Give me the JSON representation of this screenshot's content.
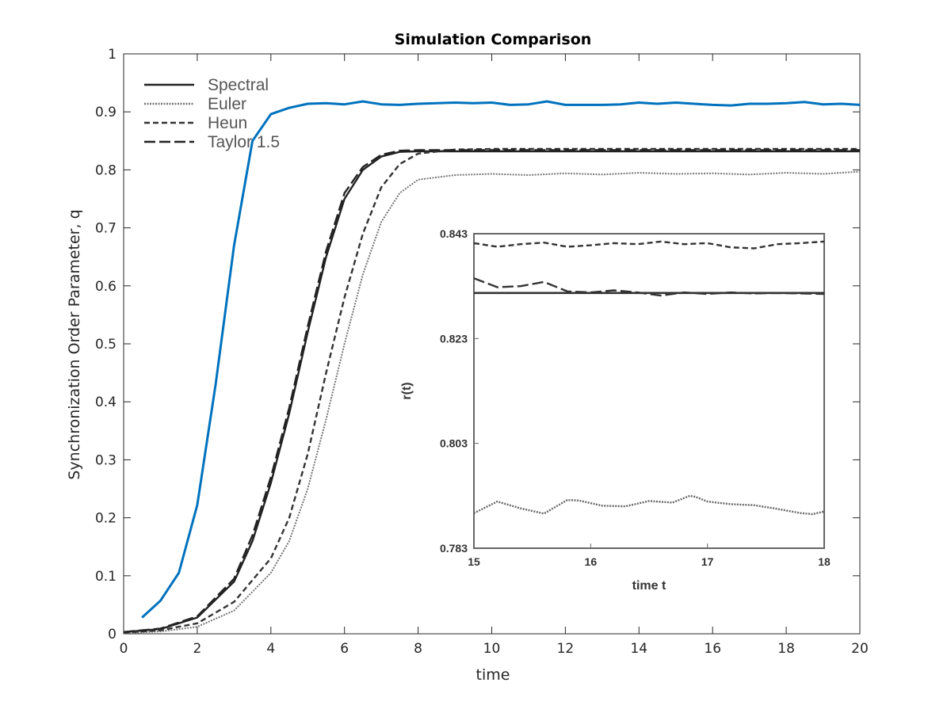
{
  "chart_data": {
    "type": "line",
    "title": "Simulation Comparison",
    "xlabel": "time",
    "ylabel": "Synchronization Order Parameter, q",
    "xlim": [
      0,
      20
    ],
    "ylim": [
      0,
      1
    ],
    "xticks": [
      "0",
      "2",
      "4",
      "6",
      "8",
      "10",
      "12",
      "14",
      "16",
      "18",
      "20"
    ],
    "yticks": [
      "0",
      "0.1",
      "0.2",
      "0.3",
      "0.4",
      "0.5",
      "0.6",
      "0.7",
      "0.8",
      "0.9",
      "1"
    ],
    "grid": false,
    "legend_position": "top-left",
    "series": [
      {
        "name": "",
        "color": "#0072BD",
        "style": "solid",
        "x": [
          0.5,
          1,
          1.5,
          2,
          2.5,
          3,
          3.5,
          4,
          4.5,
          5,
          5.5,
          6,
          6.5,
          7,
          7.5,
          8,
          8.5,
          9,
          9.5,
          10,
          10.5,
          11,
          11.5,
          12,
          12.5,
          13,
          13.5,
          14,
          14.5,
          15,
          15.5,
          16,
          16.5,
          17,
          17.5,
          18,
          18.5,
          19,
          19.5,
          20
        ],
        "y": [
          0.028,
          0.057,
          0.105,
          0.222,
          0.43,
          0.67,
          0.85,
          0.896,
          0.907,
          0.914,
          0.915,
          0.913,
          0.918,
          0.913,
          0.912,
          0.914,
          0.915,
          0.916,
          0.915,
          0.916,
          0.912,
          0.913,
          0.918,
          0.912,
          0.912,
          0.912,
          0.913,
          0.916,
          0.914,
          0.916,
          0.914,
          0.912,
          0.911,
          0.914,
          0.914,
          0.915,
          0.917,
          0.913,
          0.914,
          0.912
        ]
      },
      {
        "name": "Spectral",
        "color": "#222222",
        "style": "solid",
        "x": [
          0,
          1,
          2,
          3,
          3.5,
          4,
          4.5,
          5,
          5.5,
          6,
          6.5,
          7,
          7.5,
          8,
          10,
          12,
          14,
          16,
          18,
          20
        ],
        "y": [
          0.003,
          0.008,
          0.028,
          0.09,
          0.16,
          0.26,
          0.38,
          0.52,
          0.65,
          0.75,
          0.8,
          0.823,
          0.831,
          0.832,
          0.832,
          0.832,
          0.832,
          0.832,
          0.832,
          0.832
        ]
      },
      {
        "name": "Euler",
        "color": "#777777",
        "style": "dotted",
        "x": [
          0,
          1,
          2,
          3,
          4,
          4.5,
          5,
          5.5,
          6,
          6.5,
          7,
          7.5,
          8,
          9,
          10,
          11,
          12,
          13,
          14,
          15,
          16,
          17,
          18,
          19,
          20
        ],
        "y": [
          0.001,
          0.004,
          0.012,
          0.04,
          0.105,
          0.16,
          0.25,
          0.37,
          0.5,
          0.62,
          0.71,
          0.76,
          0.783,
          0.791,
          0.793,
          0.791,
          0.794,
          0.792,
          0.795,
          0.793,
          0.794,
          0.792,
          0.795,
          0.793,
          0.797
        ]
      },
      {
        "name": "Heun",
        "color": "#333333",
        "style": "dashed",
        "x": [
          0,
          1,
          2,
          3,
          4,
          4.5,
          5,
          5.5,
          6,
          6.5,
          7,
          7.5,
          8,
          9,
          10,
          12,
          14,
          16,
          18,
          20
        ],
        "y": [
          0.002,
          0.006,
          0.018,
          0.055,
          0.13,
          0.2,
          0.31,
          0.45,
          0.58,
          0.69,
          0.77,
          0.81,
          0.828,
          0.835,
          0.836,
          0.836,
          0.836,
          0.836,
          0.836,
          0.836
        ]
      },
      {
        "name": "Taylor 1.5",
        "color": "#222222",
        "style": "longdash",
        "x": [
          0,
          1,
          2,
          3,
          3.5,
          4,
          4.5,
          5,
          5.5,
          6,
          6.5,
          7,
          7.5,
          8,
          10,
          12,
          14,
          16,
          18,
          20
        ],
        "y": [
          0.003,
          0.009,
          0.03,
          0.095,
          0.17,
          0.27,
          0.39,
          0.53,
          0.66,
          0.76,
          0.805,
          0.826,
          0.833,
          0.834,
          0.834,
          0.834,
          0.834,
          0.834,
          0.834,
          0.834
        ]
      }
    ],
    "inset": {
      "xlabel": "time t",
      "ylabel": "r(t)",
      "xlim": [
        15,
        18
      ],
      "ylim": [
        0.783,
        0.843
      ],
      "xticks": [
        "15",
        "16",
        "17",
        "18"
      ],
      "yticks": [
        "0.783",
        "0.803",
        "0.823",
        "0.843"
      ],
      "series": [
        {
          "name": "Spectral",
          "style": "solid",
          "x": [
            15,
            18
          ],
          "y": [
            0.8317,
            0.8317
          ]
        },
        {
          "name": "Euler",
          "style": "dotted",
          "x": [
            15,
            15.2,
            15.4,
            15.6,
            15.8,
            15.9,
            16.1,
            16.3,
            16.5,
            16.7,
            16.85,
            16.9,
            17,
            17.2,
            17.4,
            17.6,
            17.8,
            17.9,
            18
          ],
          "y": [
            0.7897,
            0.7919,
            0.7906,
            0.7896,
            0.7922,
            0.7921,
            0.7911,
            0.791,
            0.792,
            0.7917,
            0.793,
            0.7928,
            0.7919,
            0.7914,
            0.7912,
            0.7905,
            0.7897,
            0.7895,
            0.79
          ]
        },
        {
          "name": "Heun",
          "style": "dashed",
          "x": [
            15,
            15.2,
            15.4,
            15.6,
            15.8,
            16,
            16.2,
            16.4,
            16.6,
            16.8,
            17,
            17.2,
            17.4,
            17.6,
            17.8,
            18
          ],
          "y": [
            0.8412,
            0.8405,
            0.841,
            0.8413,
            0.8405,
            0.8408,
            0.8412,
            0.841,
            0.8415,
            0.841,
            0.8412,
            0.8404,
            0.8402,
            0.841,
            0.8412,
            0.8415
          ]
        },
        {
          "name": "Taylor 1.5",
          "style": "longdash",
          "x": [
            15,
            15.2,
            15.4,
            15.6,
            15.8,
            16,
            16.2,
            16.4,
            16.6,
            16.8,
            17,
            17.2,
            17.4,
            17.6,
            17.8,
            18
          ],
          "y": [
            0.8345,
            0.8328,
            0.833,
            0.8338,
            0.832,
            0.8318,
            0.8322,
            0.8318,
            0.8312,
            0.8318,
            0.8315,
            0.8318,
            0.8316,
            0.8317,
            0.8316,
            0.8315
          ]
        }
      ]
    }
  }
}
